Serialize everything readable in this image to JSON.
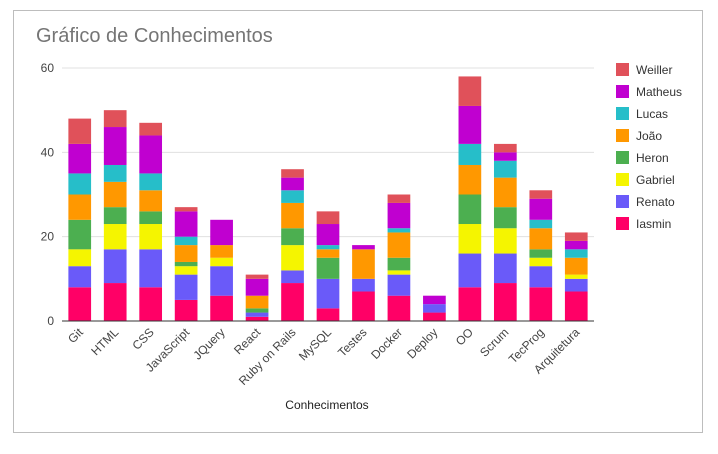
{
  "chart_data": {
    "type": "bar",
    "stacked": true,
    "title": "Gráfico de Conhecimentos",
    "xlabel": "Conhecimentos",
    "ylabel": "",
    "ylim": [
      0,
      60
    ],
    "yticks": [
      0,
      20,
      40,
      60
    ],
    "grid": true,
    "legend_position": "right",
    "categories": [
      "Git",
      "HTML",
      "CSS",
      "JavaScript",
      "JQuery",
      "React",
      "Ruby on Rails",
      "MySQL",
      "Testes",
      "Docker",
      "Deploy",
      "OO",
      "Scrum",
      "TecProg",
      "Arquitetura"
    ],
    "series": [
      {
        "name": "Iasmin",
        "color": "#ff0066",
        "values": [
          8,
          9,
          8,
          5,
          6,
          1,
          9,
          3,
          7,
          6,
          2,
          8,
          9,
          8,
          7
        ]
      },
      {
        "name": "Renato",
        "color": "#6a5af9",
        "values": [
          5,
          8,
          9,
          6,
          7,
          1,
          3,
          7,
          3,
          5,
          2,
          8,
          7,
          5,
          3
        ]
      },
      {
        "name": "Gabriel",
        "color": "#f5f500",
        "values": [
          4,
          6,
          6,
          2,
          2,
          0,
          6,
          0,
          0,
          1,
          0,
          7,
          6,
          2,
          1
        ]
      },
      {
        "name": "Heron",
        "color": "#4caf50",
        "values": [
          7,
          4,
          3,
          1,
          0,
          1,
          4,
          5,
          0,
          3,
          0,
          7,
          5,
          2,
          0
        ]
      },
      {
        "name": "João",
        "color": "#ff9800",
        "values": [
          6,
          6,
          5,
          4,
          3,
          3,
          6,
          2,
          7,
          6,
          0,
          7,
          7,
          5,
          4
        ]
      },
      {
        "name": "Lucas",
        "color": "#26bec9",
        "values": [
          5,
          4,
          4,
          2,
          0,
          0,
          3,
          1,
          0,
          1,
          0,
          5,
          4,
          2,
          2
        ]
      },
      {
        "name": "Matheus",
        "color": "#c000d0",
        "values": [
          7,
          9,
          9,
          6,
          6,
          4,
          3,
          5,
          1,
          6,
          2,
          9,
          2,
          5,
          2
        ]
      },
      {
        "name": "Weiller",
        "color": "#e0515a",
        "values": [
          6,
          4,
          3,
          1,
          0,
          1,
          2,
          3,
          0,
          2,
          0,
          7,
          2,
          2,
          2
        ]
      }
    ]
  }
}
